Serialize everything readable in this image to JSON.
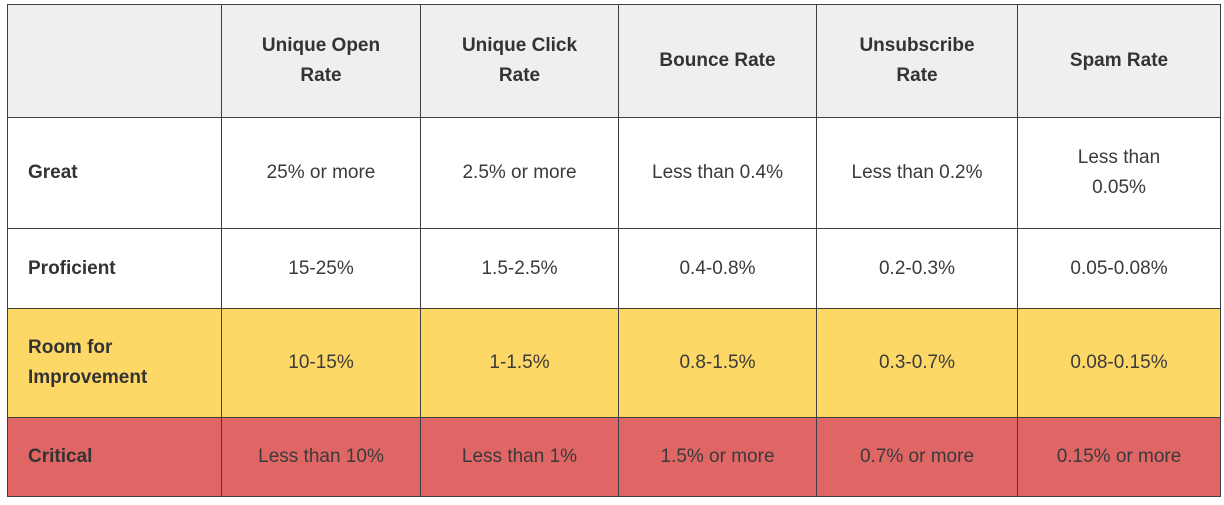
{
  "columns": [
    "",
    "Unique Open Rate",
    "Unique Click Rate",
    "Bounce Rate",
    "Unsubscribe Rate",
    "Spam Rate"
  ],
  "rows": [
    {
      "label": "Great",
      "values": [
        "25% or more",
        "2.5% or more",
        "Less than 0.4%",
        "Less than 0.2%",
        "Less than 0.05%"
      ]
    },
    {
      "label": "Proficient",
      "values": [
        "15-25%",
        "1.5-2.5%",
        "0.4-0.8%",
        "0.2-0.3%",
        "0.05-0.08%"
      ]
    },
    {
      "label": "Room for Improvement",
      "values": [
        "10-15%",
        "1-1.5%",
        "0.8-1.5%",
        "0.3-0.7%",
        "0.08-0.15%"
      ]
    },
    {
      "label": "Critical",
      "values": [
        "Less than 10%",
        "Less than 1%",
        "1.5% or more",
        "0.7% or more",
        "0.15% or more"
      ]
    }
  ],
  "colors": {
    "header_bg": "#efefef",
    "room_for_improvement_bg": "#fdd867",
    "critical_bg": "#e06666",
    "border": "#3f3f3f"
  }
}
